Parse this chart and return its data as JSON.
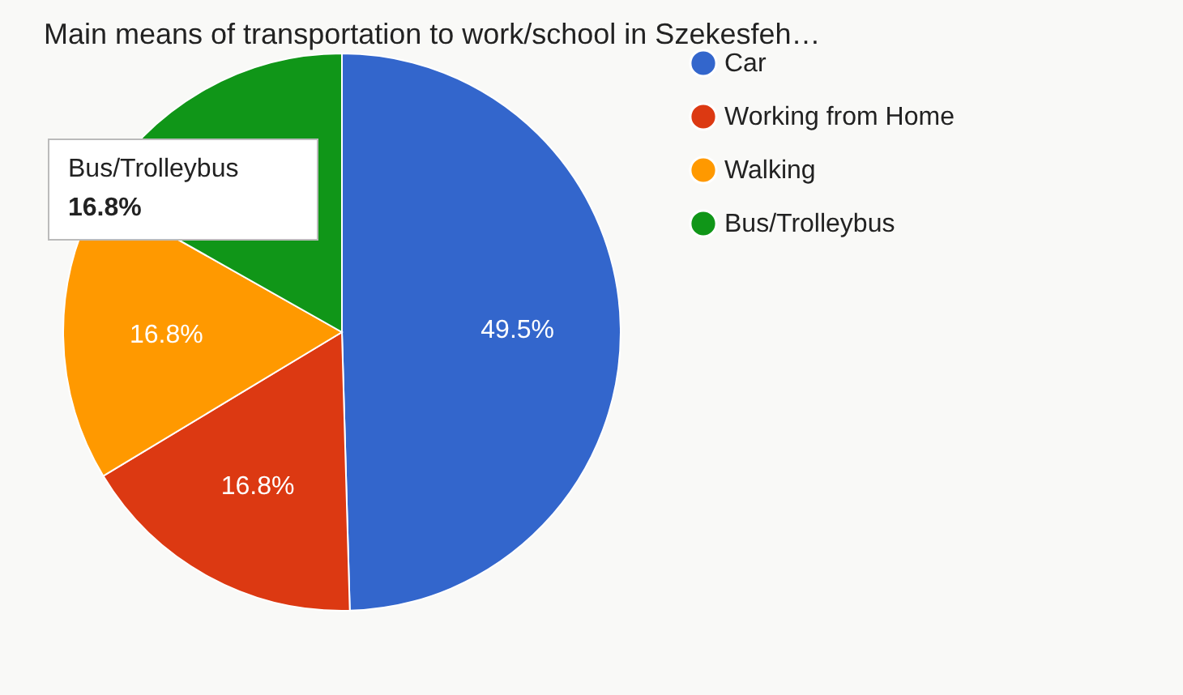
{
  "chart_data": {
    "type": "pie",
    "title": "Main means of transportation to work/school in Szekesfeh…",
    "categories": [
      "Car",
      "Working from Home",
      "Walking",
      "Bus/Trolleybus"
    ],
    "values": [
      49.5,
      16.8,
      16.8,
      16.8
    ],
    "colors": [
      "#3366cc",
      "#dc3912",
      "#ff9900",
      "#109618"
    ],
    "value_labels": [
      "49.5%",
      "16.8%",
      "16.8%",
      null
    ],
    "annotations": [
      "Bus/Trolleybus",
      "16.8%"
    ],
    "legend": "right"
  }
}
